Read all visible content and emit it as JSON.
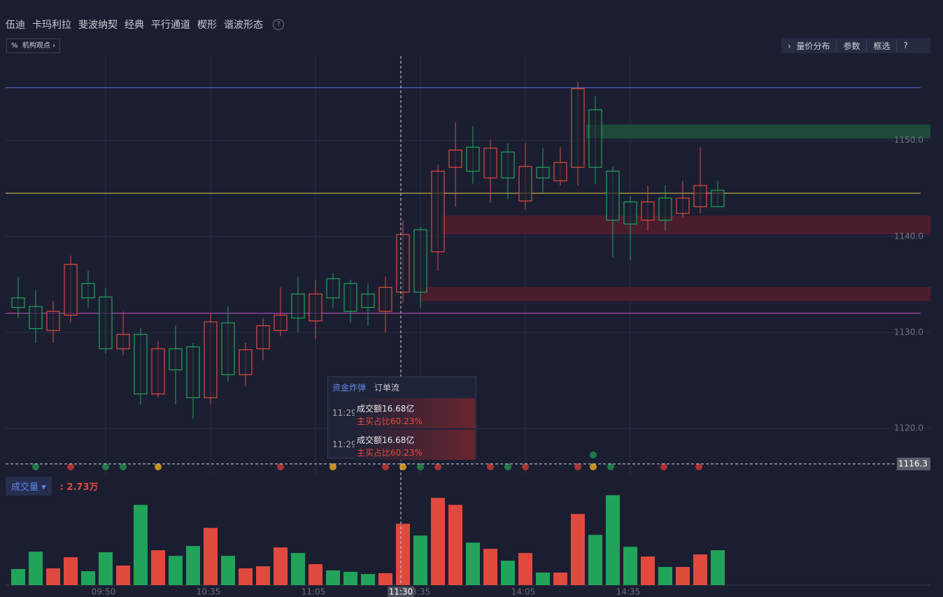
{
  "toolbar": {
    "tools": [
      "伍迪",
      "卡玛利拉",
      "斐波纳契",
      "经典",
      "平行通道",
      "楔形",
      "谐波形态"
    ],
    "help": "?"
  },
  "views_button": "机构观点",
  "right_buttons": [
    "量价分布",
    "参数",
    "框选",
    "?"
  ],
  "chart_data": [
    {
      "type": "candlestick",
      "categories": [
        null,
        null,
        null,
        null,
        null,
        "09:50",
        null,
        null,
        null,
        null,
        null,
        "10:35",
        null,
        null,
        null,
        null,
        null,
        "11:05",
        null,
        null,
        null,
        null,
        null,
        "13:35",
        null,
        null,
        null,
        null,
        null,
        "14:05",
        null,
        null,
        null,
        null,
        null,
        "14:35",
        null,
        null,
        null,
        null,
        null
      ],
      "open": [
        1132.6,
        1130.4,
        1132.2,
        1137.1,
        1133.6,
        1128.3,
        1129.8,
        1123.6,
        1128.3,
        1126.1,
        1123.2,
        1131.1,
        1125.6,
        1128.2,
        1130.7,
        1131.8,
        1131.5,
        1134.0,
        1133.6,
        1132.2,
        1132.6,
        1134.7,
        1140.2,
        1134.2,
        1146.8,
        1149.0,
        1146.8,
        1149.2,
        1146.1,
        1147.3,
        1146.1,
        1147.7,
        1155.4,
        1147.2,
        1141.7,
        1141.3,
        1143.6,
        1141.7,
        1144.0,
        1145.3,
        1143.1
      ],
      "high": [
        1135.8,
        1134.4,
        1133.3,
        1138.0,
        1136.4,
        1134.6,
        1132.2,
        1130.5,
        1129.1,
        1130.7,
        1128.9,
        1132.0,
        1132.7,
        1128.9,
        1131.5,
        1134.7,
        1135.8,
        1135.5,
        1136.2,
        1135.5,
        1135.1,
        1135.8,
        1141.7,
        1141.0,
        1147.5,
        1151.9,
        1151.5,
        1150.1,
        1149.7,
        1149.7,
        1149.2,
        1149.3,
        1156.1,
        1154.6,
        1147.3,
        1144.2,
        1145.3,
        1145.3,
        1145.8,
        1149.3,
        1145.8
      ],
      "low": [
        1131.5,
        1128.9,
        1128.9,
        1131.0,
        1132.6,
        1127.8,
        1127.6,
        1122.5,
        1123.2,
        1122.5,
        1121.0,
        1122.5,
        1124.9,
        1124.4,
        1127.1,
        1129.6,
        1130.0,
        1129.3,
        1132.6,
        1131.0,
        1130.7,
        1130.0,
        1133.1,
        1132.6,
        1136.4,
        1143.1,
        1145.5,
        1143.5,
        1143.9,
        1142.8,
        1144.6,
        1145.3,
        1145.3,
        1145.5,
        1137.8,
        1137.5,
        1140.6,
        1140.6,
        1141.9,
        1142.4,
        1143.1
      ],
      "close": [
        1133.6,
        1132.7,
        1130.2,
        1131.8,
        1135.1,
        1133.7,
        1128.3,
        1129.8,
        1123.6,
        1128.3,
        1128.5,
        1123.2,
        1131.0,
        1125.6,
        1128.3,
        1130.2,
        1134.0,
        1131.2,
        1135.6,
        1135.1,
        1134.0,
        1132.2,
        1134.2,
        1140.7,
        1138.4,
        1147.2,
        1149.3,
        1146.1,
        1148.8,
        1143.7,
        1147.2,
        1145.8,
        1147.2,
        1153.2,
        1146.8,
        1143.6,
        1141.7,
        1144.0,
        1142.4,
        1143.1,
        1144.8
      ],
      "up_color": "#22a35a",
      "down_color": "#e04a3e",
      "ylim": [
        1115.2,
        1158.8
      ],
      "yticks": [
        {
          "value": 1120,
          "label": "1120.0"
        },
        {
          "value": 1130,
          "label": "1130.0"
        },
        {
          "value": 1140,
          "label": "1140.0"
        },
        {
          "value": 1150,
          "label": "1150.0"
        }
      ],
      "levels": [
        {
          "value": 1155.5,
          "color": "#4a62b8"
        },
        {
          "value": 1144.5,
          "color": "#b9a84a"
        },
        {
          "value": 1132.0,
          "color": "#b04ab8"
        }
      ],
      "last_price": 1116.3,
      "crosshair": "11:30"
    },
    {
      "type": "bar",
      "title": "成交量",
      "legend_value": ": 2.73万",
      "values": [
        1.26,
        2.62,
        1.31,
        2.18,
        1.09,
        2.57,
        1.53,
        6.28,
        2.73,
        2.29,
        3.06,
        4.48,
        2.29,
        1.31,
        1.47,
        2.95,
        2.51,
        1.64,
        1.15,
        1.04,
        0.87,
        0.93,
        4.8,
        3.88,
        6.83,
        6.28,
        3.33,
        2.84,
        1.91,
        2.51,
        0.98,
        0.98,
        5.57,
        3.93,
        7.04,
        3.0,
        2.24,
        1.42,
        1.42,
        2.4,
        2.73
      ],
      "ylim": [
        0,
        8
      ]
    }
  ],
  "tooltip": {
    "tabs": [
      "资金炸弹",
      "订单流"
    ],
    "rows": [
      {
        "time": "11:29",
        "amount": "成交额16.68亿",
        "ratio": "主买占比60.23%"
      },
      {
        "time": "11:29",
        "amount": "成交额16.68亿",
        "ratio": "主买占比60.23%"
      }
    ]
  }
}
